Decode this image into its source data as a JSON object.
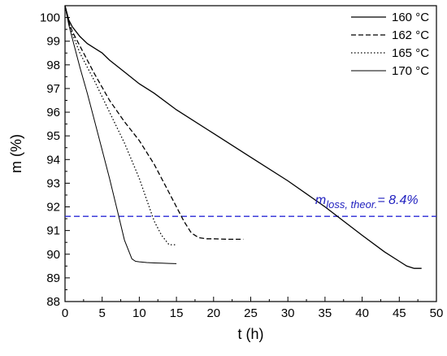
{
  "chart_data": {
    "type": "line",
    "xlabel": "t (h)",
    "ylabel": "m (%)",
    "xlim": [
      0,
      50
    ],
    "ylim": [
      88,
      100.5
    ],
    "x_ticks": [
      0,
      5,
      10,
      15,
      20,
      25,
      30,
      35,
      40,
      45,
      50
    ],
    "y_ticks": [
      88,
      89,
      90,
      91,
      92,
      93,
      94,
      95,
      96,
      97,
      98,
      99,
      100
    ],
    "grid": false,
    "legend_position": "top-right",
    "series": [
      {
        "name": "160 °C",
        "style": "solid",
        "color": "#000000",
        "x": [
          0,
          0.5,
          1,
          2,
          3,
          4,
          5,
          6,
          8,
          10,
          12,
          15,
          20,
          25,
          30,
          35,
          40,
          43,
          45,
          46,
          47,
          48
        ],
        "y": [
          100.5,
          99.9,
          99.6,
          99.2,
          98.9,
          98.7,
          98.5,
          98.2,
          97.7,
          97.2,
          96.8,
          96.1,
          95.1,
          94.1,
          93.1,
          92.0,
          90.8,
          90.1,
          89.7,
          89.5,
          89.4,
          89.4
        ]
      },
      {
        "name": "162 °C",
        "style": "dashed",
        "color": "#000000",
        "x": [
          0,
          0.5,
          1,
          2,
          3,
          4,
          6,
          8,
          10,
          12,
          14,
          15,
          16,
          17,
          18,
          19,
          20,
          22,
          24
        ],
        "y": [
          100.5,
          99.8,
          99.4,
          98.8,
          98.2,
          97.6,
          96.5,
          95.6,
          94.8,
          93.8,
          92.6,
          92.0,
          91.4,
          90.9,
          90.7,
          90.65,
          90.65,
          90.63,
          90.63
        ]
      },
      {
        "name": "165 °C",
        "style": "dotted",
        "color": "#000000",
        "x": [
          0,
          0.5,
          1,
          2,
          3,
          4,
          6,
          8,
          10,
          11,
          12,
          13,
          14,
          14.5,
          15
        ],
        "y": [
          100.5,
          99.8,
          99.3,
          98.5,
          97.9,
          97.3,
          96.0,
          94.7,
          93.2,
          92.3,
          91.4,
          90.8,
          90.4,
          90.4,
          90.4
        ]
      },
      {
        "name": "170 °C",
        "style": "solid-thin",
        "color": "#000000",
        "x": [
          0,
          0.5,
          1,
          2,
          3,
          4,
          5,
          6,
          7,
          8,
          9,
          9.5,
          10,
          11,
          12,
          13,
          14,
          15
        ],
        "y": [
          100.5,
          99.7,
          99.1,
          97.9,
          96.8,
          95.6,
          94.4,
          93.2,
          91.9,
          90.6,
          89.8,
          89.7,
          89.68,
          89.65,
          89.63,
          89.62,
          89.61,
          89.6
        ]
      }
    ],
    "reference_line": {
      "y": 91.6,
      "style": "dashed",
      "color": "#2a2ad6"
    },
    "annotation": {
      "main": "m",
      "subscript": "loss, theor.",
      "value": "= 8.4%",
      "x": 42,
      "y": 92.25,
      "color": "#1f1fbf"
    }
  }
}
